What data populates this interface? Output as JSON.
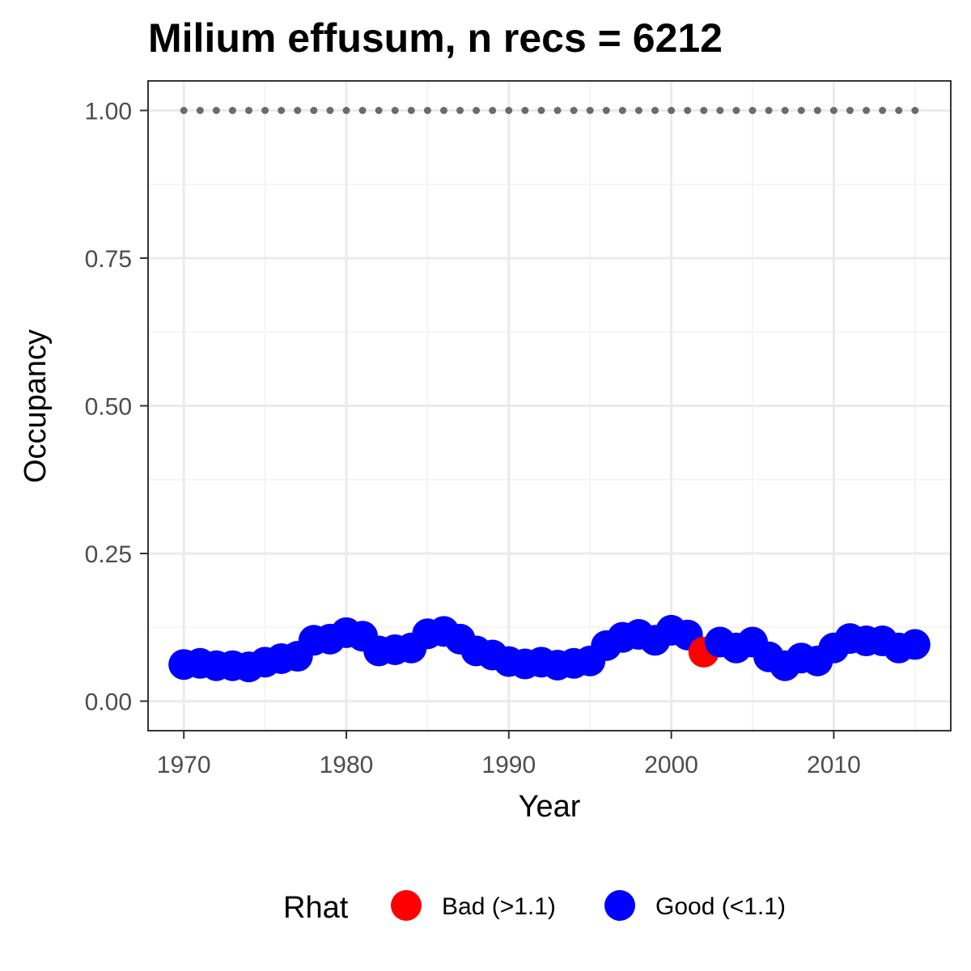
{
  "chart_data": {
    "type": "scatter",
    "title": "Milium effusum, n recs = 6212",
    "xlabel": "Year",
    "ylabel": "Occupancy",
    "xlim": [
      1967.8,
      2017.2
    ],
    "ylim": [
      -0.05,
      1.05
    ],
    "x_ticks": [
      1970,
      1980,
      1990,
      2000,
      2010
    ],
    "x_tick_labels": [
      "1970",
      "1980",
      "1990",
      "2000",
      "2010"
    ],
    "y_ticks": [
      0.0,
      0.25,
      0.5,
      0.75,
      1.0
    ],
    "y_tick_labels": [
      "0.00",
      "0.25",
      "0.50",
      "0.75",
      "1.00"
    ],
    "grid": true,
    "legend": {
      "title": "Rhat",
      "position": "bottom",
      "entries": [
        {
          "label": "Bad (>1.1)",
          "color": "#ff0000"
        },
        {
          "label": "Good (<1.1)",
          "color": "#0000ff"
        }
      ]
    },
    "reference_line": {
      "style": "dotted",
      "color": "#6b6b6b",
      "y": 1.0,
      "x_start": 1970,
      "x_end": 2015
    },
    "colors": {
      "bad": "#ff0000",
      "good": "#0000ff",
      "ribbon": "#d9d9d9"
    },
    "series": [
      {
        "x": [
          1970,
          1971,
          1972,
          1973,
          1974,
          1975,
          1976,
          1977,
          1978,
          1979,
          1980,
          1981,
          1982,
          1983,
          1984,
          1985,
          1986,
          1987,
          1988,
          1989,
          1990,
          1991,
          1992,
          1993,
          1994,
          1995,
          1996,
          1997,
          1998,
          1999,
          2000,
          2001,
          2002,
          2003,
          2004,
          2005,
          2006,
          2007,
          2008,
          2009,
          2010,
          2011,
          2012,
          2013,
          2014,
          2015
        ],
        "y": [
          0.062,
          0.064,
          0.06,
          0.06,
          0.058,
          0.066,
          0.072,
          0.076,
          0.103,
          0.105,
          0.116,
          0.11,
          0.085,
          0.087,
          0.09,
          0.114,
          0.118,
          0.105,
          0.085,
          0.078,
          0.067,
          0.063,
          0.066,
          0.061,
          0.064,
          0.068,
          0.094,
          0.108,
          0.113,
          0.103,
          0.12,
          0.112,
          0.083,
          0.1,
          0.09,
          0.1,
          0.075,
          0.06,
          0.073,
          0.068,
          0.09,
          0.106,
          0.102,
          0.102,
          0.09,
          0.096
        ],
        "rhat": [
          "good",
          "good",
          "good",
          "good",
          "good",
          "good",
          "good",
          "good",
          "good",
          "good",
          "good",
          "good",
          "good",
          "good",
          "good",
          "good",
          "good",
          "good",
          "good",
          "good",
          "good",
          "good",
          "good",
          "good",
          "good",
          "good",
          "good",
          "good",
          "good",
          "good",
          "good",
          "good",
          "bad",
          "good",
          "good",
          "good",
          "good",
          "good",
          "good",
          "good",
          "good",
          "good",
          "good",
          "good",
          "good",
          "good"
        ]
      }
    ]
  }
}
